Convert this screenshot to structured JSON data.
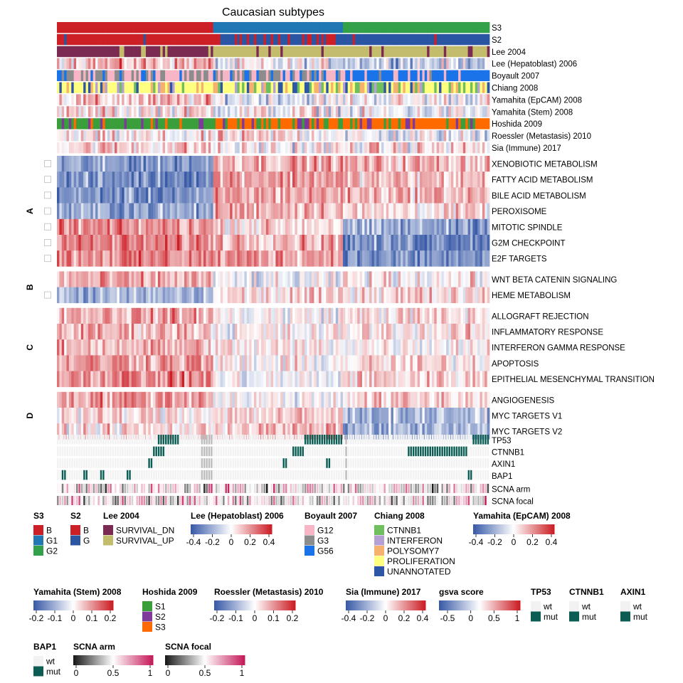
{
  "chart_data": {
    "type": "heatmap",
    "title": "Caucasian subtypes",
    "n_samples": 180,
    "annotation_tracks": [
      {
        "name": "S3",
        "kind": "categorical",
        "groups": [
          {
            "label": "B",
            "share": 0.36
          },
          {
            "label": "G1",
            "share": 0.3
          },
          {
            "label": "G2",
            "share": 0.34
          }
        ]
      },
      {
        "name": "S2",
        "kind": "categorical"
      },
      {
        "name": "Lee 2004",
        "kind": "categorical"
      },
      {
        "name": "Lee (Hepatoblast) 2006",
        "kind": "continuous"
      },
      {
        "name": "Boyault 2007",
        "kind": "categorical"
      },
      {
        "name": "Chiang 2008",
        "kind": "categorical"
      },
      {
        "name": "Yamahita (EpCAM) 2008",
        "kind": "continuous"
      },
      {
        "name": "Yamahita (Stem) 2008",
        "kind": "continuous"
      },
      {
        "name": "Hoshida 2009",
        "kind": "categorical"
      },
      {
        "name": "Roessler (Metastasis) 2010",
        "kind": "continuous"
      },
      {
        "name": "Sia (Immune) 2017",
        "kind": "continuous"
      }
    ],
    "row_groups": [
      {
        "label": "A",
        "rows": [
          "XENOBIOTIC METABOLISM",
          "FATTY ACID METABOLISM",
          "BILE ACID METABOLISM",
          "PEROXISOME",
          "MITOTIC SPINDLE",
          "G2M CHECKPOINT",
          "E2F TARGETS"
        ]
      },
      {
        "label": "B",
        "rows": [
          "WNT BETA CATENIN SIGNALING",
          "HEME METABOLISM"
        ]
      },
      {
        "label": "C",
        "rows": [
          "ALLOGRAFT REJECTION",
          "INFLAMMATORY RESPONSE",
          "INTERFERON GAMMA RESPONSE",
          "APOPTOSIS",
          "EPITHELIAL MESENCHYMAL TRANSITION"
        ]
      },
      {
        "label": "D",
        "rows": [
          "ANGIOGENESIS",
          "MYC TARGETS V1",
          "MYC TARGETS V2"
        ]
      }
    ],
    "row_group_trend": {
      "XENOBIOTIC METABOLISM": [
        -0.45,
        0.3,
        0.25
      ],
      "FATTY ACID METABOLISM": [
        -0.5,
        0.35,
        0.2
      ],
      "BILE ACID METABOLISM": [
        -0.5,
        0.3,
        0.25
      ],
      "PEROXISOME": [
        -0.4,
        0.3,
        0.1
      ],
      "MITOTIC SPINDLE": [
        0.35,
        0.15,
        -0.4
      ],
      "G2M CHECKPOINT": [
        0.4,
        0.3,
        -0.5
      ],
      "E2F TARGETS": [
        0.4,
        0.35,
        -0.5
      ],
      "WNT BETA CATENIN SIGNALING": [
        0.25,
        -0.1,
        0.05
      ],
      "HEME METABOLISM": [
        -0.35,
        0.1,
        0.15
      ],
      "ALLOGRAFT REJECTION": [
        0.3,
        0.0,
        0.1
      ],
      "INFLAMMATORY RESPONSE": [
        0.25,
        0.0,
        0.1
      ],
      "INTERFERON GAMMA RESPONSE": [
        0.25,
        0.05,
        0.05
      ],
      "APOPTOSIS": [
        0.35,
        0.0,
        0.1
      ],
      "EPITHELIAL MESENCHYMAL TRANSITION": [
        0.4,
        -0.05,
        0.15
      ],
      "ANGIOGENESIS": [
        0.35,
        0.0,
        0.15
      ],
      "MYC TARGETS V1": [
        0.1,
        0.15,
        -0.3
      ],
      "MYC TARGETS V2": [
        0.1,
        0.2,
        -0.35
      ]
    },
    "mutation_tracks": [
      "TP53",
      "CTNNB1",
      "AXIN1",
      "BAP1"
    ],
    "scna_tracks": [
      "SCNA arm",
      "SCNA focal"
    ],
    "legends": [
      {
        "title": "S3",
        "type": "discrete",
        "items": [
          {
            "label": "B",
            "color": "#cc1f26"
          },
          {
            "label": "G1",
            "color": "#1f77b4"
          },
          {
            "label": "G2",
            "color": "#33a04a"
          }
        ]
      },
      {
        "title": "S2",
        "type": "discrete",
        "items": [
          {
            "label": "B",
            "color": "#cc1f26"
          },
          {
            "label": "G",
            "color": "#2955a3"
          }
        ]
      },
      {
        "title": "Lee 2004",
        "type": "discrete",
        "items": [
          {
            "label": "SURVIVAL_DN",
            "color": "#7b2a52"
          },
          {
            "label": "SURVIVAL_UP",
            "color": "#c4bc6d"
          }
        ]
      },
      {
        "title": "Lee (Hepatoblast) 2006",
        "type": "continuous",
        "ticks": [
          "-0.4",
          "-0.2",
          "0",
          "0.2",
          "0.4"
        ]
      },
      {
        "title": "Boyault 2007",
        "type": "discrete",
        "items": [
          {
            "label": "G12",
            "color": "#f7b5c6"
          },
          {
            "label": "G3",
            "color": "#8c8c8c"
          },
          {
            "label": "G56",
            "color": "#1a73e8"
          }
        ]
      },
      {
        "title": "Chiang 2008",
        "type": "discrete",
        "items": [
          {
            "label": "CTNNB1",
            "color": "#6fbf5f"
          },
          {
            "label": "INTERFERON",
            "color": "#b5a0d5"
          },
          {
            "label": "POLYSOMY7",
            "color": "#f6b16e"
          },
          {
            "label": "PROLIFERATION",
            "color": "#ffff80"
          },
          {
            "label": "UNANNOTATED",
            "color": "#2d56a6"
          }
        ]
      },
      {
        "title": "Yamahita (EpCAM) 2008",
        "type": "continuous",
        "ticks": [
          "-0.4",
          "-0.2",
          "0",
          "0.2",
          "0.4"
        ]
      },
      {
        "title": "Yamahita (Stem) 2008",
        "type": "continuous",
        "ticks": [
          "-0.2",
          "-0.1",
          "0",
          "0.1",
          "0.2"
        ]
      },
      {
        "title": "Hoshida 2009",
        "type": "discrete",
        "items": [
          {
            "label": "S1",
            "color": "#3a9e3a"
          },
          {
            "label": "S2",
            "color": "#7d3a99"
          },
          {
            "label": "S3",
            "color": "#ff6a00"
          }
        ]
      },
      {
        "title": "Roessler (Metastasis) 2010",
        "type": "continuous",
        "ticks": [
          "-0.2",
          "-0.1",
          "0",
          "0.1",
          "0.2"
        ]
      },
      {
        "title": "Sia (Immune) 2017",
        "type": "continuous",
        "ticks": [
          "-0.4",
          "-0.2",
          "0",
          "0.2",
          "0.4"
        ]
      },
      {
        "title": "gsva score",
        "type": "continuous",
        "ticks": [
          "-0.5",
          "0",
          "0.5",
          "1"
        ]
      },
      {
        "title": "TP53",
        "type": "discrete",
        "items": [
          {
            "label": "wt",
            "color": "#f2f2f2"
          },
          {
            "label": "mut",
            "color": "#0b5d53"
          }
        ]
      },
      {
        "title": "CTNNB1",
        "type": "discrete",
        "items": [
          {
            "label": "wt",
            "color": "#f2f2f2"
          },
          {
            "label": "mut",
            "color": "#0b5d53"
          }
        ]
      },
      {
        "title": "AXIN1",
        "type": "discrete",
        "items": [
          {
            "label": "wt",
            "color": "#f2f2f2"
          },
          {
            "label": "mut",
            "color": "#0b5d53"
          }
        ]
      },
      {
        "title": "BAP1",
        "type": "discrete",
        "items": [
          {
            "label": "wt",
            "color": "#f2f2f2"
          },
          {
            "label": "mut",
            "color": "#0b5d53"
          }
        ]
      },
      {
        "title": "SCNA arm",
        "type": "continuous",
        "ticks": [
          "0",
          "0.5",
          "1"
        ]
      },
      {
        "title": "SCNA focal",
        "type": "continuous",
        "ticks": [
          "0",
          "0.5",
          "1"
        ]
      }
    ],
    "colors": {
      "low": "#3a5ba8",
      "mid": "#ffffff",
      "high": "#cc1f26",
      "scna_low": "#1a1a1a",
      "scna_high": "#c51b5a",
      "mutation": "#0b5d53",
      "wildtype": "#f2f2f2"
    }
  }
}
